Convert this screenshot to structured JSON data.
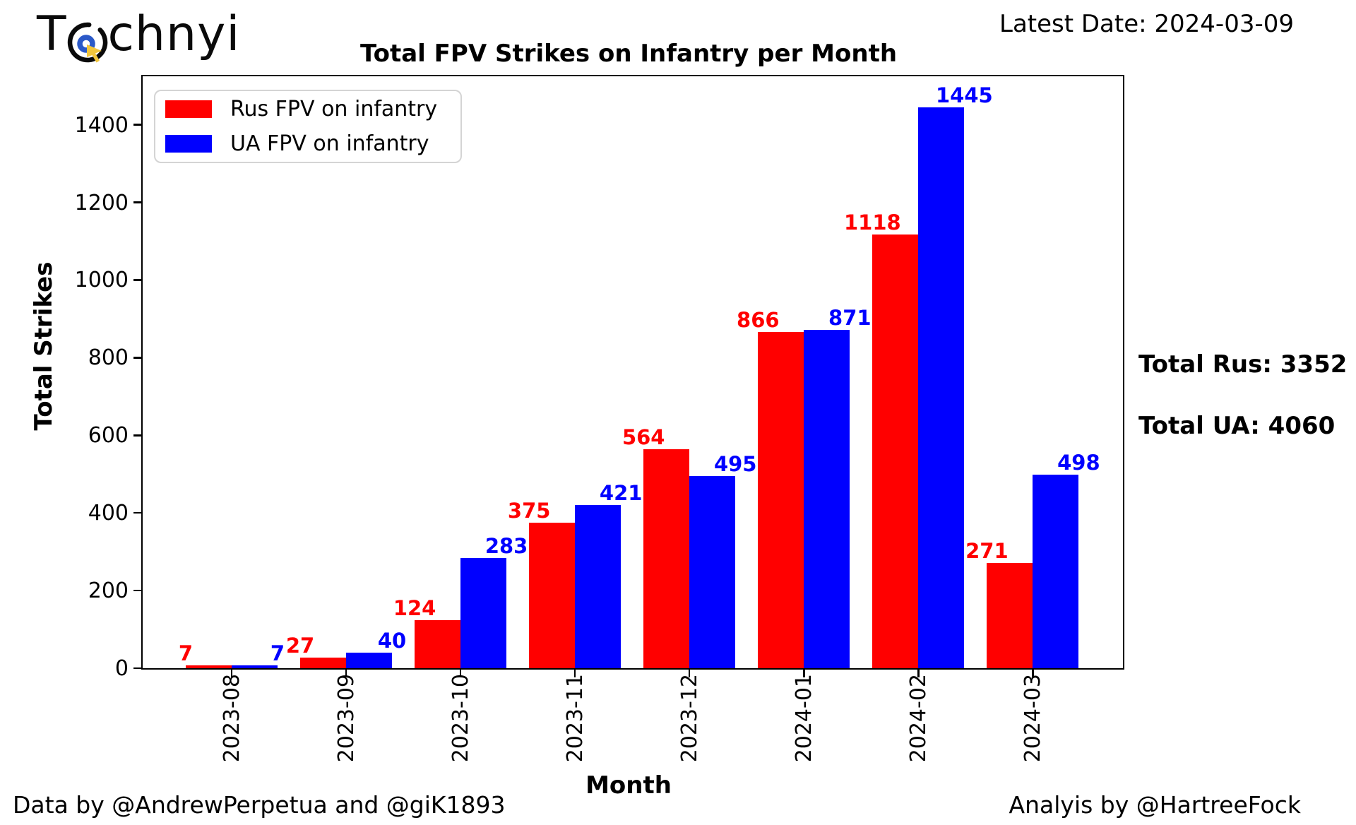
{
  "brand": {
    "logo_prefix": "T",
    "logo_suffix": "chnyi",
    "icon_colors": {
      "circle": "#0a0a0a",
      "ring": "#2b59c8",
      "cursor": "#f2c63d"
    }
  },
  "header": {
    "latest_date": "Latest Date: 2024-03-09"
  },
  "annotations": {
    "total_rus": "Total Rus: 3352",
    "total_ua": "Total UA: 4060"
  },
  "footer": {
    "credit_left": "Data by @AndrewPerpetua and @giK1893",
    "credit_right": "Analyis by @HartreeFock"
  },
  "chart_data": {
    "type": "bar",
    "title": "Total FPV Strikes on Infantry per Month",
    "xlabel": "Month",
    "ylabel": "Total Strikes",
    "categories": [
      "2023-08",
      "2023-09",
      "2023-10",
      "2023-11",
      "2023-12",
      "2024-01",
      "2024-02",
      "2024-03"
    ],
    "series": [
      {
        "name": "Rus FPV on infantry",
        "color": "#ff0000",
        "values": [
          7,
          27,
          124,
          375,
          564,
          866,
          1118,
          271
        ],
        "total": 3352
      },
      {
        "name": "UA FPV on infantry",
        "color": "#0000ff",
        "values": [
          7,
          40,
          283,
          421,
          495,
          871,
          1445,
          498
        ],
        "total": 4060
      }
    ],
    "yticks": [
      0,
      200,
      400,
      600,
      800,
      1000,
      1200,
      1400
    ],
    "ylim": [
      0,
      1527
    ],
    "legend_position": "upper left",
    "grid": false,
    "bar_value_labels": true
  }
}
